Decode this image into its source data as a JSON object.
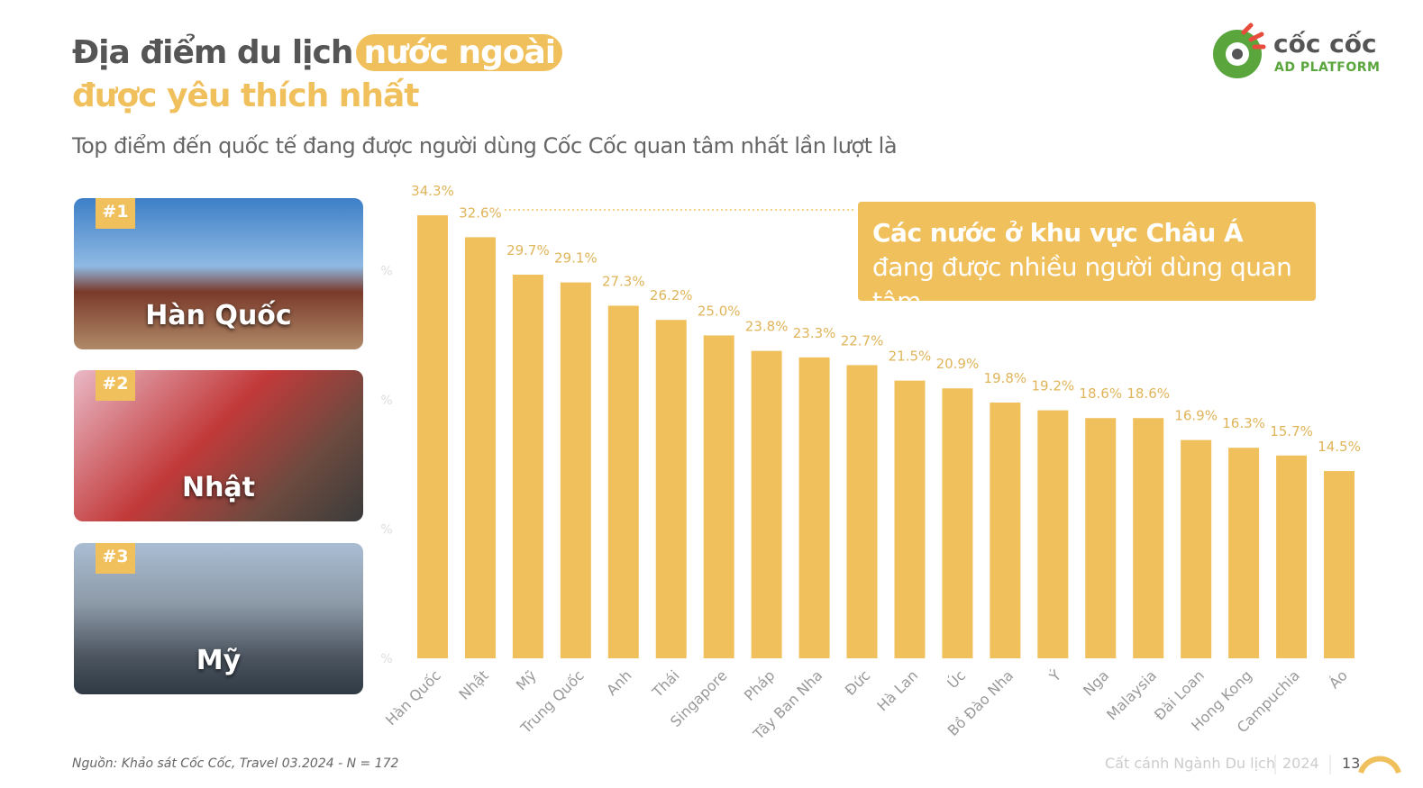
{
  "header": {
    "title_a": "Địa điểm du lịch",
    "title_highlight": "nước ngoài",
    "title_b": "được yêu thích nhất",
    "subtitle": "Top điểm đến quốc tế đang được người dùng Cốc Cốc quan tâm nhất lần lượt là"
  },
  "logo": {
    "name": "cốc cốc",
    "tagline": "AD PLATFORM"
  },
  "top3": [
    {
      "rank": "#1",
      "name": "Hàn Quốc"
    },
    {
      "rank": "#2",
      "name": "Nhật"
    },
    {
      "rank": "#3",
      "name": "Mỹ"
    }
  ],
  "callout": {
    "bold": "Các nước ở khu vực Châu Á",
    "rest": "đang được nhiều người dùng quan tâm."
  },
  "chart_data": {
    "type": "bar",
    "categories": [
      "Hàn Quốc",
      "Nhật",
      "Mỹ",
      "Trung Quốc",
      "Anh",
      "Thái",
      "Singapore",
      "Pháp",
      "Tây Ban Nha",
      "Đức",
      "Hà Lan",
      "Úc",
      "Bồ Đào Nha",
      "Ý",
      "Nga",
      "Malaysia",
      "Đài Loan",
      "Hong Kong",
      "Campuchia",
      "Áo"
    ],
    "values": [
      34.3,
      32.6,
      29.7,
      29.1,
      27.3,
      26.2,
      25.0,
      23.8,
      23.3,
      22.7,
      21.5,
      20.9,
      19.8,
      19.2,
      18.6,
      18.6,
      16.9,
      16.3,
      15.7,
      14.5
    ],
    "value_labels": [
      "34.3%",
      "32.6%",
      "29.7%",
      "29.1%",
      "27.3%",
      "26.2%",
      "25.0%",
      "23.8%",
      "23.3%",
      "22.7%",
      "21.5%",
      "20.9%",
      "19.8%",
      "19.2%",
      "18.6%",
      "18.6%",
      "16.9%",
      "16.3%",
      "15.7%",
      "14.5%"
    ],
    "color": "#f0c05c",
    "ylim": [
      0,
      35
    ],
    "yticks": [
      {
        "value": 0,
        "label": "%"
      },
      {
        "value": 10,
        "label": "%"
      },
      {
        "value": 20,
        "label": "%"
      },
      {
        "value": 30,
        "label": "%"
      }
    ],
    "grid": false
  },
  "footer": {
    "source": "Nguồn:  Khảo sát Cốc Cốc, Travel 03.2024 - N = 172",
    "series": "Cất cánh Ngành Du lịch",
    "year": "2024",
    "page": "13"
  }
}
